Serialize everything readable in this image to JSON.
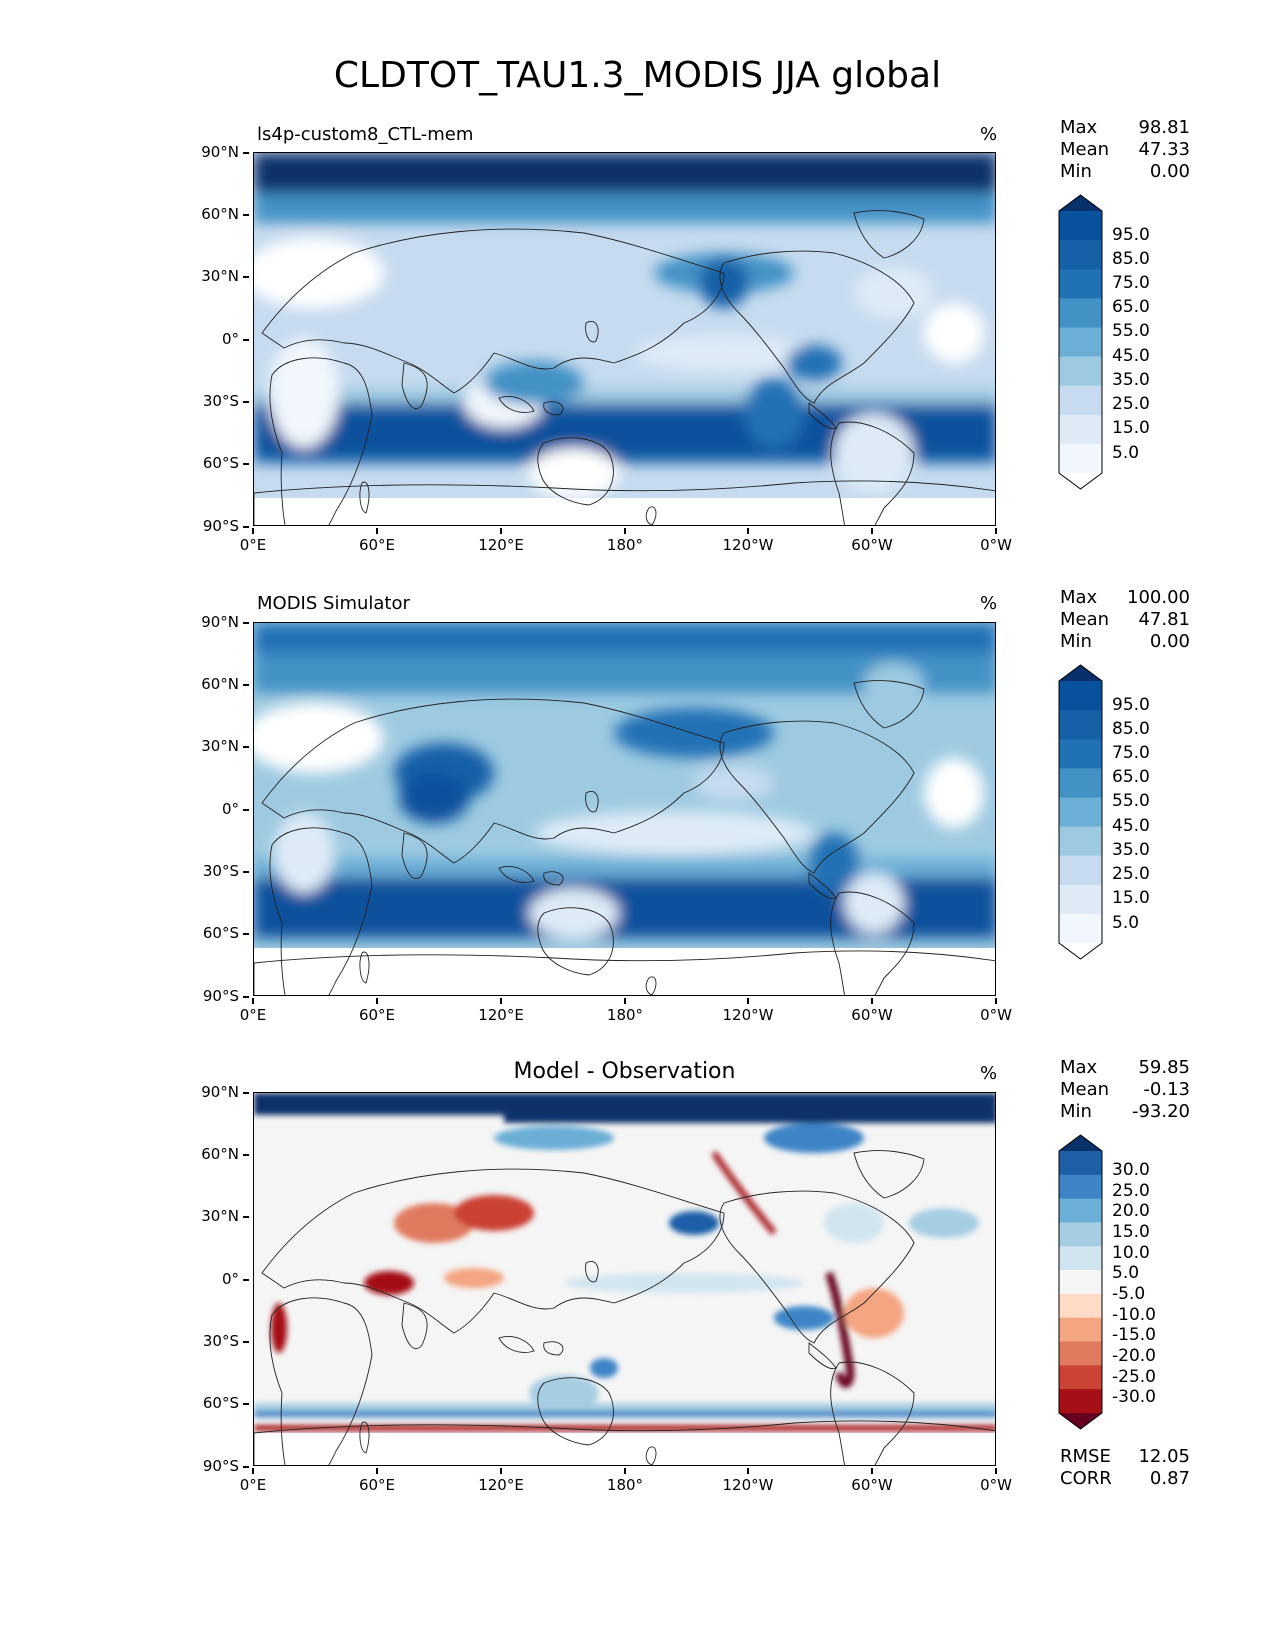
{
  "title": "CLDTOT_TAU1.3_MODIS JJA global",
  "axes": {
    "lat_labels": [
      "90°N",
      "60°N",
      "30°N",
      "0°",
      "30°S",
      "60°S",
      "90°S"
    ],
    "lon_labels": [
      "0°E",
      "60°E",
      "120°E",
      "180°",
      "120°W",
      "60°W",
      "0°W"
    ]
  },
  "colors": {
    "sequential": [
      "#ffffff",
      "#f2f7fd",
      "#deebf7",
      "#c6dbef",
      "#9ecae1",
      "#6baed6",
      "#4292c6",
      "#2171b5",
      "#1660a8",
      "#08519c",
      "#08306b"
    ],
    "diverging": [
      "#67001f",
      "#a50f15",
      "#cb4335",
      "#e07a5f",
      "#f4a582",
      "#fddbc7",
      "#f5f5f5",
      "#d1e5f0",
      "#a6cee3",
      "#6baed6",
      "#3d85c6",
      "#1f5fa8",
      "#08306b"
    ]
  },
  "panels": [
    {
      "title": "ls4p-custom8_CTL-mem",
      "unit": "%",
      "stats": [
        {
          "label": "Max",
          "value": "98.81"
        },
        {
          "label": "Mean",
          "value": "47.33"
        },
        {
          "label": "Min",
          "value": "0.00"
        }
      ],
      "colorbar_labels": [
        "95.0",
        "85.0",
        "75.0",
        "65.0",
        "55.0",
        "45.0",
        "35.0",
        "25.0",
        "15.0",
        "5.0"
      ]
    },
    {
      "title": "MODIS Simulator",
      "unit": "%",
      "stats": [
        {
          "label": "Max",
          "value": "100.00"
        },
        {
          "label": "Mean",
          "value": "47.81"
        },
        {
          "label": "Min",
          "value": "0.00"
        }
      ],
      "colorbar_labels": [
        "95.0",
        "85.0",
        "75.0",
        "65.0",
        "55.0",
        "45.0",
        "35.0",
        "25.0",
        "15.0",
        "5.0"
      ]
    },
    {
      "title": "Model - Observation",
      "unit": "%",
      "stats": [
        {
          "label": "Max",
          "value": "59.85"
        },
        {
          "label": "Mean",
          "value": "-0.13"
        },
        {
          "label": "Min",
          "value": "-93.20"
        }
      ],
      "colorbar_labels": [
        "30.0",
        "25.0",
        "20.0",
        "15.0",
        "10.0",
        "5.0",
        "-5.0",
        "-10.0",
        "-15.0",
        "-20.0",
        "-25.0",
        "-30.0"
      ],
      "metrics": [
        {
          "label": "RMSE",
          "value": "12.05"
        },
        {
          "label": "CORR",
          "value": "0.87"
        }
      ]
    }
  ]
}
